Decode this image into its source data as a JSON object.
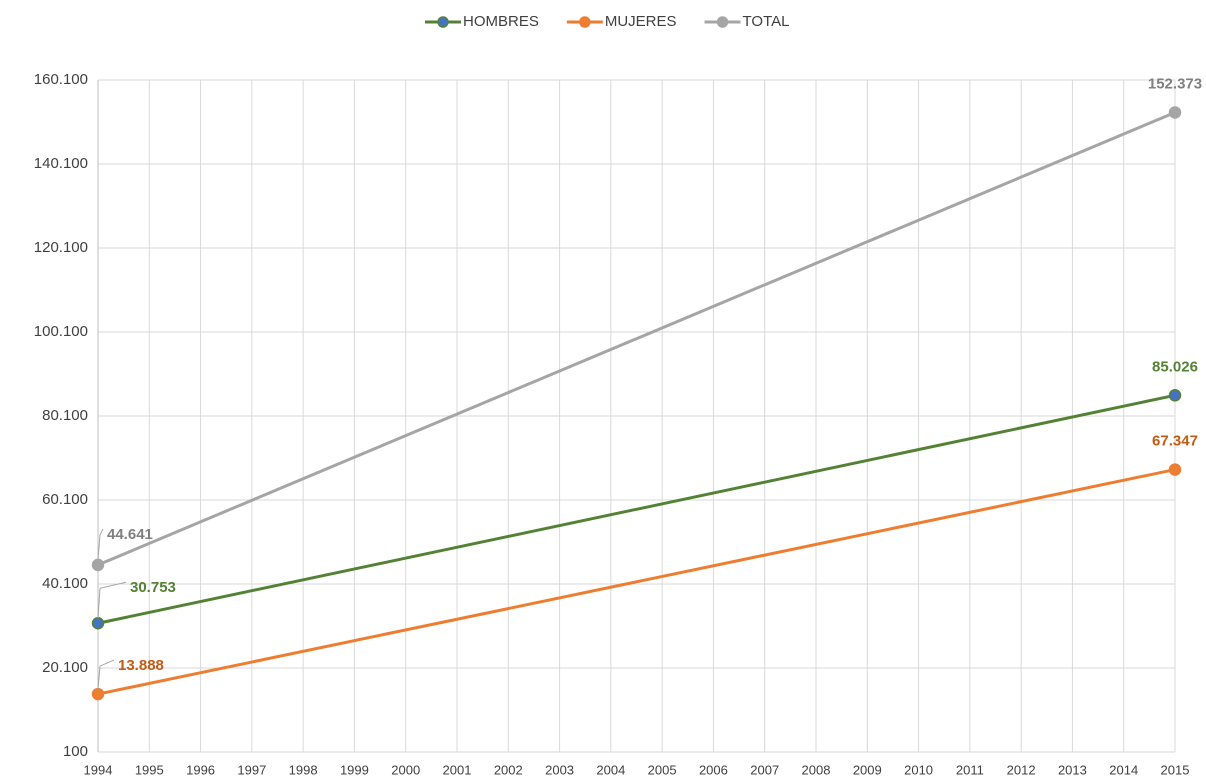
{
  "chart_data": {
    "type": "line",
    "x": [
      1994,
      2015
    ],
    "xlim": [
      1994,
      2015
    ],
    "xticks": [
      1994,
      1995,
      1996,
      1997,
      1998,
      1999,
      2000,
      2001,
      2002,
      2003,
      2004,
      2005,
      2006,
      2007,
      2008,
      2009,
      2010,
      2011,
      2012,
      2013,
      2014,
      2015
    ],
    "ylim": [
      100,
      160100
    ],
    "yticks": [
      100,
      {
        "value": 20100,
        "label": "20.100"
      },
      {
        "value": 40100,
        "label": "40.100"
      },
      {
        "value": 60100,
        "label": "60.100"
      },
      {
        "value": 80100,
        "label": "80.100"
      },
      {
        "value": 100100,
        "label": "100.100"
      },
      {
        "value": 120100,
        "label": "120.100"
      },
      {
        "value": 140100,
        "label": "140.100"
      },
      {
        "value": 160100,
        "label": "160.100"
      }
    ],
    "grid": true,
    "legend": "top",
    "series": [
      {
        "name": "HOMBRES",
        "color": "#548235",
        "marker_color": "#4472c4",
        "label_color": "#548235",
        "values": [
          30753,
          85026
        ],
        "value_labels": [
          "30.753",
          "85.026"
        ]
      },
      {
        "name": "MUJERES",
        "color": "#ed7d31",
        "marker_color": "#ed7d31",
        "label_color": "#c55a11",
        "values": [
          13888,
          67347
        ],
        "value_labels": [
          "13.888",
          "67.347"
        ]
      },
      {
        "name": "TOTAL",
        "color": "#a5a5a5",
        "marker_color": "#a5a5a5",
        "label_color": "#7f7f7f",
        "values": [
          44641,
          152373
        ],
        "value_labels": [
          "44.641",
          "152.373"
        ]
      }
    ]
  }
}
